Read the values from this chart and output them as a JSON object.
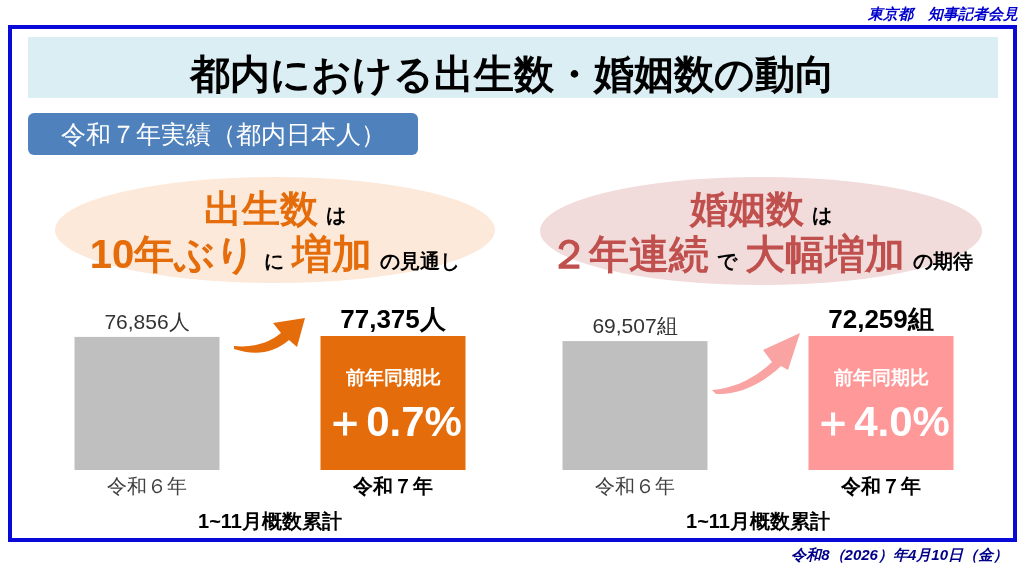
{
  "chart_data": [
    {
      "type": "bar",
      "title": "都内における出生数・婚姻数の動向",
      "subtitle": "**出生数**は**10年ぶり**に**増加**の見通し",
      "xlabel": "1~11月概数累計",
      "categories": [
        "令和６年",
        "令和７年"
      ],
      "values": [
        76856,
        77375
      ],
      "colors": [
        "#bfbfbf",
        "#e46c0a"
      ],
      "value_labels": [
        "76,856人",
        "77,375人"
      ],
      "annotations": [
        "東京都　知事記者会見",
        "令和７年実績（都内日本人）",
        "前年同期比",
        "＋0.7%",
        "令和8（2026）年4月10日（金）"
      ]
    },
    {
      "type": "bar",
      "subtitle": "**婚姻数**は**２年連続**で**大幅増加**の期待",
      "xlabel": "1~11月概数累計",
      "categories": [
        "令和６年",
        "令和７年"
      ],
      "values": [
        69507,
        72259
      ],
      "colors": [
        "#bfbfbf",
        "#ff9999"
      ],
      "value_labels": [
        "69,507組",
        "72,259組"
      ],
      "annotations": [
        "前年同期比",
        "＋4.0%"
      ]
    }
  ]
}
